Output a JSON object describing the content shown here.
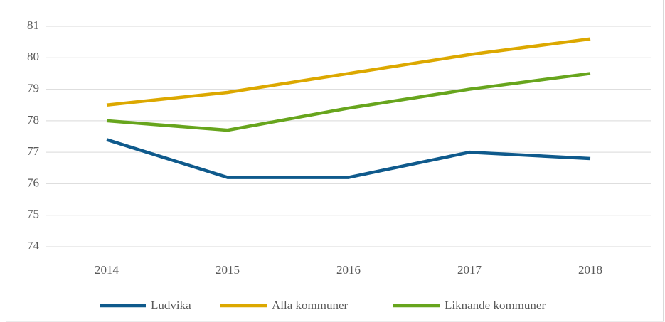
{
  "chart_data": {
    "type": "line",
    "categories": [
      "2014",
      "2015",
      "2016",
      "2017",
      "2018"
    ],
    "series": [
      {
        "name": "Ludvika",
        "color": "#0f5a8c",
        "values": [
          77.4,
          76.2,
          76.2,
          77.0,
          76.8
        ]
      },
      {
        "name": "Alla kommuner",
        "color": "#dca800",
        "values": [
          78.5,
          78.9,
          79.5,
          80.1,
          80.6
        ]
      },
      {
        "name": "Liknande kommuner",
        "color": "#67a51d",
        "values": [
          78.0,
          77.7,
          78.4,
          79.0,
          79.5
        ]
      }
    ],
    "ylim": [
      74,
      81
    ],
    "yticks": [
      74,
      75,
      76,
      77,
      78,
      79,
      80,
      81
    ],
    "grid": true,
    "legend": "bottom"
  }
}
